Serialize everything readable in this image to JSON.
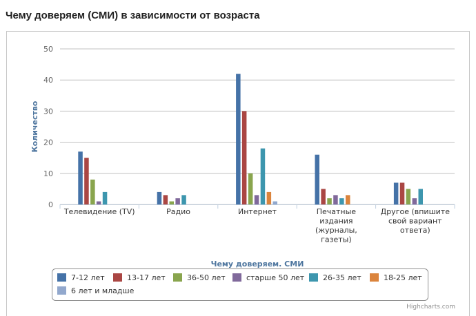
{
  "page": {
    "title": "Чему доверяем (СМИ) в зависимости от возраста"
  },
  "chart_data": {
    "type": "bar",
    "title": "",
    "xlabel": "Чему доверяем. СМИ",
    "ylabel": "Количество",
    "ylim": [
      0,
      50
    ],
    "yticks": [
      0,
      10,
      20,
      30,
      40,
      50
    ],
    "grid": true,
    "legend_position": "bottom",
    "categories": [
      [
        "Телевидение (TV)"
      ],
      [
        "Радио"
      ],
      [
        "Интернет"
      ],
      [
        "Печатные",
        "издания",
        "(журналы,",
        "газеты)"
      ],
      [
        "Другое (впишите",
        "свой вариант",
        "ответа)"
      ]
    ],
    "series": [
      {
        "name": "7-12 лет",
        "color": "#4572a7",
        "values": [
          17,
          4,
          42,
          16,
          7
        ]
      },
      {
        "name": "13-17 лет",
        "color": "#aa4643",
        "values": [
          15,
          3,
          30,
          5,
          7
        ]
      },
      {
        "name": "36-50 лет",
        "color": "#89a54e",
        "values": [
          8,
          1,
          10,
          2,
          5
        ]
      },
      {
        "name": "старше 50 лет",
        "color": "#80699b",
        "values": [
          1,
          2,
          3,
          3,
          2
        ]
      },
      {
        "name": "26-35 лет",
        "color": "#3d96ae",
        "values": [
          4,
          3,
          18,
          2,
          5
        ]
      },
      {
        "name": "18-25 лет",
        "color": "#db843d",
        "values": [
          0,
          0,
          4,
          3,
          0
        ]
      },
      {
        "name": "6 лет и младше",
        "color": "#92a8cd",
        "values": [
          0,
          0,
          1,
          0,
          0
        ]
      }
    ],
    "credits": "Highcharts.com"
  }
}
